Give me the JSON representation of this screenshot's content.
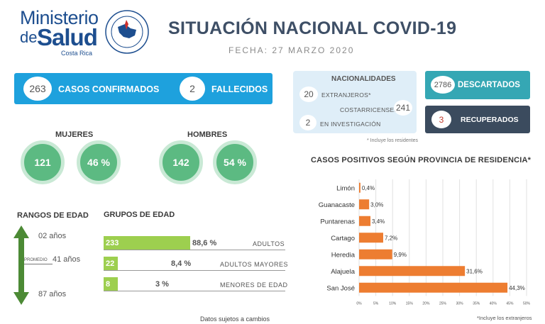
{
  "logo": {
    "line1": "Ministerio",
    "de": "de",
    "salud": "Salud",
    "country": "Costa Rica"
  },
  "title": "SITUACIÓN NACIONAL COVID-19",
  "date": "FECHA: 27  MARZO 2020",
  "confirmed": {
    "value": "263",
    "label": "CASOS CONFIRMADOS"
  },
  "deaths": {
    "value": "2",
    "label": "FALLECIDOS"
  },
  "nationalities": {
    "title": "NACIONALIDADES",
    "foreign_value": "20",
    "foreign_label": "EXTRANJEROS*",
    "local_value": "241",
    "local_label": "COSTARRICENSES",
    "investigation_value": "2",
    "investigation_label": "EN INVESTIGACIÓN",
    "note": "* Incluye los residentes"
  },
  "discarded": {
    "value": "2786",
    "label": "DESCARTADOS"
  },
  "recovered": {
    "value": "3",
    "label": "RECUPERADOS"
  },
  "women": {
    "title": "MUJERES",
    "count": "121",
    "pct": "46 %"
  },
  "men": {
    "title": "HOMBRES",
    "count": "142",
    "pct": "54 %"
  },
  "age_ranges": {
    "title": "RANGOS DE EDAD",
    "min": "02 años",
    "avg_label": "PROMEDIO",
    "avg": "41 años",
    "max": "87 años"
  },
  "age_groups": {
    "title": "GRUPOS DE EDAD",
    "rows": [
      {
        "count": "233",
        "pct": "88,6 %",
        "label": "ADULTOS",
        "fraction": 0.886
      },
      {
        "count": "22",
        "pct": "8,4 %",
        "label": "ADULTOS MAYORES",
        "fraction": 0.084
      },
      {
        "count": "8",
        "pct": "3 %",
        "label": "MENORES DE EDAD",
        "fraction": 0.03
      }
    ]
  },
  "footer": "Datos sujetos a cambios",
  "colors": {
    "blue": "#1ea1dd",
    "teal": "#35a7b4",
    "dark": "#3b4b5e",
    "green": "#5cba82",
    "lime": "#9dcf4f",
    "orange": "#ed7d31"
  },
  "chart_data": {
    "type": "bar",
    "orientation": "horizontal",
    "title": "CASOS POSITIVOS SEGÚN PROVINCIA DE RESIDENCIA*",
    "categories": [
      "Limón",
      "Guanacaste",
      "Puntarenas",
      "Cartago",
      "Heredia",
      "Alajuela",
      "San José"
    ],
    "values": [
      0.4,
      3.0,
      3.4,
      7.2,
      9.9,
      31.6,
      44.3
    ],
    "labels": [
      "0,4%",
      "3,0%",
      "3,4%",
      "7,2%",
      "9,9%",
      "31,6%",
      "44,3%"
    ],
    "xticks": [
      "0%",
      "5%",
      "10%",
      "15%",
      "20%",
      "25%",
      "30%",
      "35%",
      "40%",
      "45%",
      "50%"
    ],
    "xlim": [
      0,
      50
    ],
    "grid": true,
    "note": "*Incluye los extranjeros"
  }
}
